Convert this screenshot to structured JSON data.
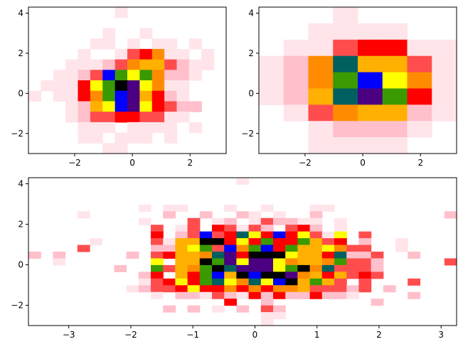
{
  "chart_data": [
    {
      "type": "heatmap",
      "title": "",
      "xlabel": "",
      "ylabel": "",
      "xlim": [
        -3.6,
        3.25
      ],
      "ylim": [
        -3.0,
        4.3
      ],
      "x_ticks": [
        -2,
        0,
        2
      ],
      "y_ticks": [
        -2,
        0,
        2,
        4
      ],
      "bins": 16,
      "colormap": [
        "#ffffff",
        "#ffe5ea",
        "#ffc0cb",
        "#ff4d4d",
        "#ff0000",
        "#ff8c00",
        "#ffb000",
        "#ffff00",
        "#3a9a00",
        "#006060",
        "#0000ff",
        "#4b0082",
        "#000000"
      ],
      "counts": [
        [
          0,
          0,
          0,
          0,
          0,
          0,
          0,
          1,
          0,
          0,
          0,
          0,
          0,
          0,
          0,
          0
        ],
        [
          0,
          0,
          0,
          0,
          0,
          0,
          0,
          0,
          0,
          0,
          0,
          0,
          0,
          0,
          0,
          0
        ],
        [
          0,
          0,
          0,
          0,
          0,
          0,
          1,
          0,
          0,
          1,
          0,
          0,
          0,
          0,
          0,
          0
        ],
        [
          0,
          0,
          0,
          0,
          0,
          1,
          1,
          0,
          1,
          0,
          1,
          1,
          0,
          1,
          0,
          0
        ],
        [
          0,
          0,
          0,
          0,
          1,
          0,
          0,
          1,
          3,
          4,
          5,
          1,
          1,
          0,
          1,
          0
        ],
        [
          0,
          0,
          0,
          1,
          1,
          1,
          2,
          3,
          5,
          6,
          6,
          3,
          2,
          1,
          1,
          0
        ],
        [
          0,
          0,
          1,
          1,
          2,
          3,
          10,
          8,
          7,
          8,
          5,
          2,
          2,
          1,
          0,
          0
        ],
        [
          0,
          1,
          1,
          1,
          4,
          7,
          8,
          12,
          11,
          7,
          5,
          1,
          1,
          0,
          0,
          0
        ],
        [
          1,
          0,
          1,
          1,
          4,
          5,
          8,
          10,
          11,
          6,
          4,
          2,
          1,
          0,
          0,
          0
        ],
        [
          0,
          0,
          0,
          1,
          2,
          6,
          7,
          10,
          11,
          7,
          4,
          3,
          2,
          2,
          0,
          0
        ],
        [
          0,
          0,
          0,
          1,
          2,
          3,
          3,
          4,
          4,
          3,
          3,
          1,
          1,
          0,
          0,
          0
        ],
        [
          0,
          0,
          0,
          0,
          1,
          1,
          1,
          0,
          1,
          1,
          1,
          1,
          0,
          1,
          0,
          0
        ],
        [
          0,
          0,
          0,
          0,
          1,
          1,
          0,
          1,
          1,
          1,
          0,
          1,
          0,
          0,
          0,
          0
        ],
        [
          0,
          0,
          0,
          0,
          0,
          0,
          1,
          1,
          0,
          0,
          0,
          0,
          0,
          0,
          0,
          0
        ]
      ]
    },
    {
      "type": "heatmap",
      "title": "",
      "xlabel": "",
      "ylabel": "",
      "xlim": [
        -3.6,
        3.25
      ],
      "ylim": [
        -3.0,
        4.3
      ],
      "x_ticks": [
        -2,
        0,
        2
      ],
      "y_ticks": [
        -2,
        0,
        2,
        4
      ],
      "bins": 8,
      "colormap": [
        "#ffffff",
        "#ffe5ea",
        "#ffc0cb",
        "#ff4d4d",
        "#ff0000",
        "#ff8c00",
        "#ffb000",
        "#ffff00",
        "#3a9a00",
        "#006060",
        "#0000ff",
        "#4b0082",
        "#000000"
      ],
      "counts": [
        [
          0,
          0,
          0,
          1,
          0,
          0,
          0,
          0
        ],
        [
          0,
          0,
          1,
          1,
          1,
          1,
          0,
          0
        ],
        [
          0,
          1,
          1,
          3,
          4,
          4,
          1,
          1
        ],
        [
          1,
          2,
          5,
          9,
          6,
          6,
          3,
          1
        ],
        [
          1,
          2,
          5,
          8,
          10,
          7,
          5,
          1
        ],
        [
          1,
          2,
          6,
          9,
          11,
          8,
          4,
          1
        ],
        [
          0,
          1,
          3,
          5,
          6,
          6,
          2,
          1
        ],
        [
          0,
          0,
          1,
          2,
          2,
          2,
          1,
          0
        ],
        [
          0,
          0,
          1,
          1,
          1,
          1,
          0,
          0
        ]
      ]
    },
    {
      "type": "heatmap",
      "title": "",
      "xlabel": "",
      "ylabel": "",
      "xlim": [
        -3.65,
        3.25
      ],
      "ylim": [
        -3.0,
        4.3
      ],
      "x_ticks": [
        -3,
        -2,
        -1,
        0,
        1,
        2,
        3
      ],
      "y_ticks": [
        -2,
        0,
        2,
        4
      ],
      "bins": 30,
      "colormap": [
        "#ffffff",
        "#ffe5ea",
        "#ffc0cb",
        "#ff4d4d",
        "#ff0000",
        "#ff8c00",
        "#ffb000",
        "#ffff00",
        "#3a9a00",
        "#006060",
        "#0000ff",
        "#4b0082",
        "#000000"
      ],
      "counts": [
        [
          0,
          0,
          0,
          0,
          0,
          0,
          0,
          0,
          0,
          0,
          0,
          0,
          0,
          0,
          0,
          0,
          0,
          1,
          0,
          0,
          0,
          0,
          0,
          0,
          0,
          0,
          0,
          0,
          0,
          0,
          0,
          0,
          0,
          0,
          0
        ],
        [
          0,
          0,
          0,
          0,
          0,
          0,
          0,
          0,
          0,
          0,
          0,
          0,
          0,
          0,
          0,
          0,
          0,
          0,
          0,
          0,
          0,
          0,
          0,
          0,
          0,
          0,
          0,
          0,
          0,
          0,
          0,
          0,
          0,
          0,
          0
        ],
        [
          0,
          0,
          0,
          0,
          0,
          0,
          0,
          0,
          0,
          0,
          0,
          0,
          0,
          0,
          0,
          0,
          0,
          0,
          0,
          0,
          0,
          0,
          0,
          0,
          0,
          0,
          0,
          0,
          0,
          0,
          0,
          0,
          0,
          0,
          0
        ],
        [
          0,
          0,
          0,
          0,
          0,
          0,
          0,
          0,
          0,
          0,
          0,
          0,
          0,
          0,
          0,
          0,
          0,
          0,
          0,
          0,
          0,
          0,
          0,
          0,
          0,
          0,
          0,
          0,
          0,
          0,
          0,
          0,
          0,
          0,
          0
        ],
        [
          0,
          0,
          0,
          0,
          0,
          0,
          0,
          0,
          0,
          1,
          0,
          1,
          1,
          0,
          0,
          0,
          1,
          0,
          0,
          1,
          0,
          0,
          0,
          1,
          1,
          0,
          0,
          0,
          0,
          0,
          0,
          0,
          0,
          0,
          0
        ],
        [
          0,
          0,
          0,
          0,
          1,
          0,
          0,
          0,
          0,
          0,
          0,
          2,
          0,
          0,
          2,
          0,
          0,
          2,
          1,
          0,
          1,
          0,
          0,
          2,
          0,
          0,
          0,
          0,
          0,
          0,
          0,
          0,
          0,
          0,
          2
        ],
        [
          0,
          0,
          0,
          0,
          0,
          0,
          0,
          0,
          0,
          1,
          0,
          0,
          0,
          3,
          0,
          1,
          2,
          0,
          1,
          3,
          2,
          2,
          1,
          1,
          0,
          1,
          0,
          0,
          0,
          0,
          0,
          0,
          0,
          0,
          0
        ],
        [
          0,
          0,
          0,
          0,
          0,
          0,
          0,
          0,
          0,
          0,
          3,
          0,
          1,
          3,
          0,
          4,
          3,
          1,
          3,
          2,
          0,
          3,
          4,
          2,
          0,
          1,
          0,
          0,
          0,
          0,
          0,
          0,
          0,
          0,
          0
        ],
        [
          0,
          0,
          0,
          0,
          0,
          0,
          0,
          0,
          0,
          0,
          4,
          0,
          2,
          3,
          10,
          3,
          4,
          9,
          7,
          4,
          10,
          4,
          7,
          3,
          1,
          7,
          0,
          3,
          0,
          0,
          0,
          0,
          0,
          0,
          0
        ],
        [
          0,
          0,
          0,
          0,
          0,
          1,
          0,
          0,
          0,
          0,
          3,
          1,
          6,
          6,
          12,
          12,
          4,
          7,
          4,
          8,
          4,
          4,
          8,
          6,
          3,
          4,
          0,
          2,
          0,
          0,
          1,
          0,
          0,
          0,
          0
        ],
        [
          0,
          0,
          0,
          0,
          3,
          0,
          0,
          0,
          0,
          0,
          2,
          2,
          6,
          7,
          8,
          3,
          10,
          5,
          8,
          10,
          4,
          8,
          6,
          6,
          7,
          5,
          3,
          3,
          0,
          0,
          1,
          0,
          0,
          0,
          0
        ],
        [
          2,
          0,
          2,
          0,
          0,
          0,
          0,
          0,
          2,
          0,
          3,
          4,
          6,
          6,
          5,
          9,
          11,
          4,
          12,
          12,
          12,
          7,
          6,
          6,
          4,
          9,
          2,
          2,
          3,
          0,
          0,
          2,
          0,
          0,
          0
        ],
        [
          0,
          0,
          1,
          0,
          0,
          0,
          0,
          0,
          0,
          0,
          7,
          0,
          6,
          6,
          12,
          8,
          11,
          7,
          11,
          11,
          7,
          5,
          6,
          6,
          5,
          8,
          3,
          3,
          2,
          0,
          0,
          0,
          0,
          0,
          3
        ],
        [
          0,
          0,
          0,
          0,
          0,
          0,
          0,
          2,
          0,
          0,
          8,
          3,
          6,
          5,
          8,
          12,
          9,
          11,
          11,
          11,
          7,
          8,
          12,
          5,
          9,
          3,
          3,
          3,
          2,
          0,
          0,
          0,
          0,
          0,
          0
        ],
        [
          0,
          0,
          0,
          0,
          0,
          0,
          0,
          0,
          0,
          2,
          4,
          0,
          6,
          4,
          8,
          10,
          6,
          12,
          10,
          12,
          12,
          11,
          5,
          6,
          4,
          6,
          3,
          4,
          3,
          0,
          0,
          0,
          0,
          0,
          0
        ],
        [
          0,
          0,
          0,
          0,
          0,
          0,
          0,
          0,
          0,
          1,
          3,
          4,
          7,
          4,
          8,
          9,
          7,
          5,
          9,
          7,
          10,
          12,
          6,
          8,
          6,
          3,
          0,
          3,
          0,
          0,
          0,
          3,
          0,
          0,
          0
        ],
        [
          0,
          0,
          0,
          0,
          0,
          0,
          0,
          0,
          1,
          2,
          3,
          3,
          4,
          7,
          4,
          4,
          5,
          4,
          5,
          4,
          5,
          5,
          6,
          3,
          3,
          3,
          2,
          3,
          0,
          2,
          0,
          0,
          0,
          0,
          0
        ],
        [
          0,
          0,
          0,
          0,
          0,
          0,
          0,
          0,
          0,
          0,
          1,
          0,
          2,
          2,
          1,
          3,
          2,
          1,
          4,
          2,
          4,
          2,
          2,
          4,
          2,
          2,
          1,
          0,
          0,
          0,
          0,
          2,
          0,
          0,
          0
        ],
        [
          0,
          0,
          0,
          0,
          0,
          0,
          0,
          0,
          0,
          0,
          0,
          0,
          0,
          0,
          0,
          0,
          4,
          0,
          0,
          2,
          0,
          0,
          0,
          0,
          0,
          0,
          0,
          0,
          2,
          0,
          0,
          0,
          0,
          0,
          0
        ],
        [
          0,
          0,
          0,
          0,
          0,
          0,
          0,
          0,
          0,
          0,
          0,
          2,
          0,
          2,
          0,
          1,
          0,
          2,
          0,
          3,
          2,
          0,
          0,
          0,
          0,
          0,
          0,
          0,
          0,
          0,
          0,
          0,
          0,
          0,
          0
        ],
        [
          0,
          0,
          0,
          0,
          0,
          0,
          0,
          0,
          0,
          0,
          0,
          0,
          0,
          0,
          0,
          0,
          0,
          0,
          0,
          1,
          1,
          0,
          0,
          0,
          0,
          0,
          0,
          0,
          0,
          0,
          0,
          0,
          0,
          0,
          0
        ],
        [
          0,
          0,
          0,
          0,
          0,
          0,
          0,
          0,
          0,
          0,
          0,
          0,
          0,
          0,
          0,
          0,
          0,
          0,
          0,
          1,
          0,
          0,
          0,
          0,
          0,
          0,
          0,
          0,
          0,
          0,
          0,
          0,
          0,
          0,
          0
        ]
      ]
    }
  ]
}
